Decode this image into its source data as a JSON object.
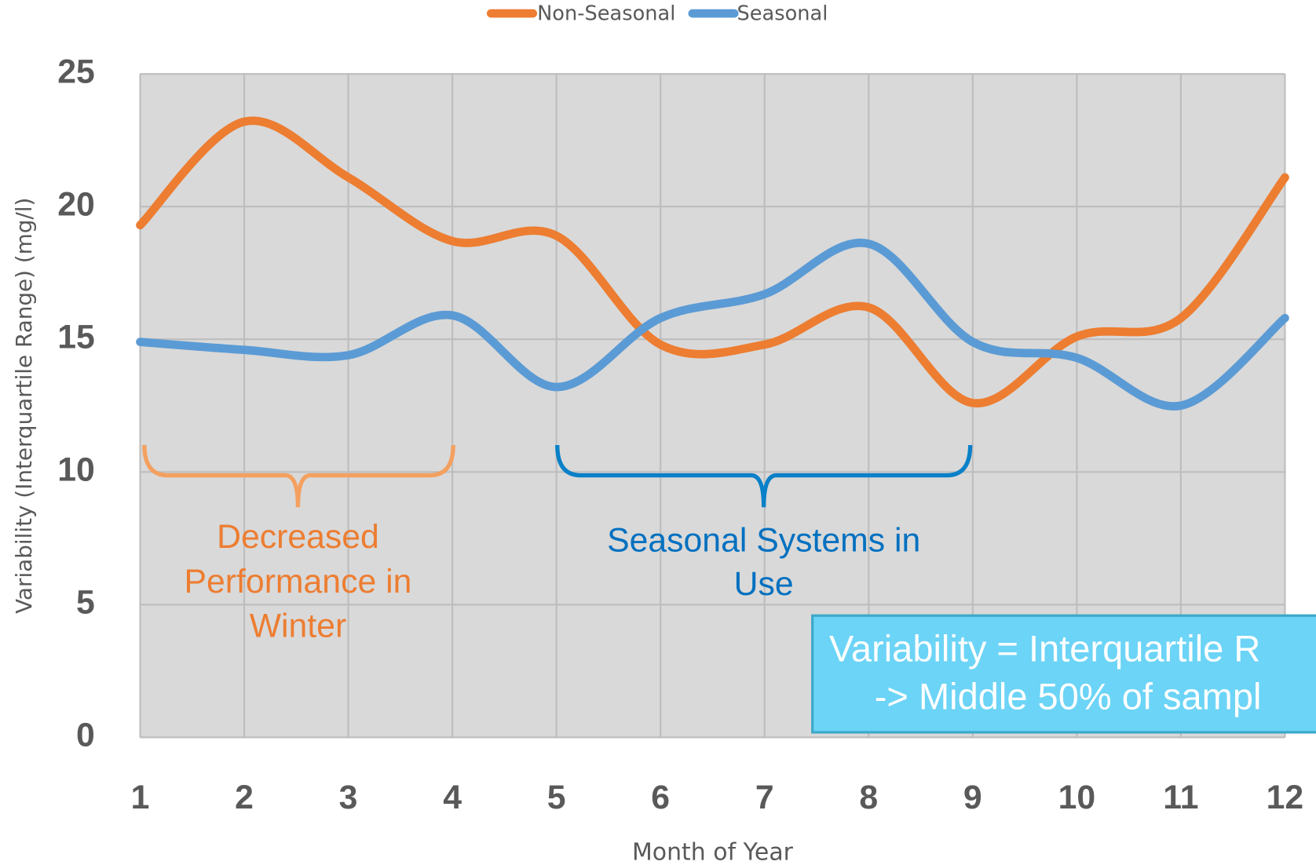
{
  "chart_data": {
    "type": "line",
    "smooth": true,
    "x_label": "Month of Year",
    "y_label": "Variability (Interquartile Range) (mg/l)",
    "x": [
      1,
      2,
      3,
      4,
      5,
      6,
      7,
      8,
      9,
      10,
      11,
      12
    ],
    "xlim": [
      1,
      12
    ],
    "xticks": [
      1,
      2,
      3,
      4,
      5,
      6,
      7,
      8,
      9,
      10,
      11,
      12
    ],
    "ylim": [
      0,
      25
    ],
    "yticks": [
      0,
      5,
      10,
      15,
      20,
      25
    ],
    "grid": true,
    "legend": "top",
    "series": [
      {
        "name": "Non-Seasonal",
        "color": "#ed7d31",
        "values": [
          19.3,
          23.2,
          21.1,
          18.7,
          18.9,
          14.8,
          14.8,
          16.2,
          12.6,
          15.1,
          15.8,
          21.1
        ]
      },
      {
        "name": "Seasonal",
        "color": "#5b9bd5",
        "values": [
          14.9,
          14.6,
          14.4,
          15.9,
          13.2,
          15.8,
          16.7,
          18.6,
          14.9,
          14.3,
          12.5,
          15.8
        ]
      }
    ],
    "annotations": [
      {
        "lines": [
          "Decreased",
          "Performance in",
          "Winter"
        ],
        "color": "#ed7d31"
      },
      {
        "lines": [
          "Seasonal Systems in",
          "Use"
        ],
        "color": "#0070c0"
      },
      {
        "lines": [
          "Variability = Interquartile R",
          "-> Middle 50% of sampl"
        ],
        "color": "#ffffff"
      }
    ]
  }
}
